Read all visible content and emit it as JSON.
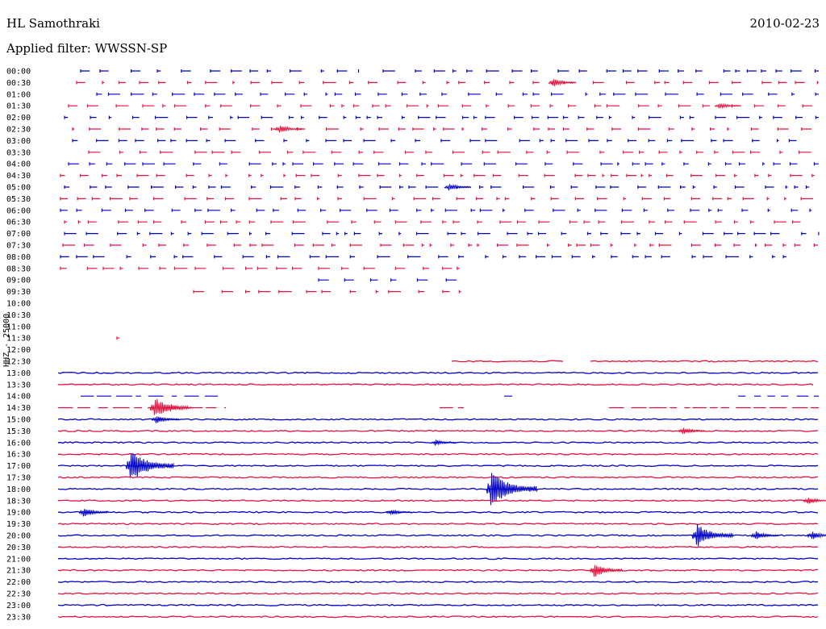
{
  "header": {
    "station": "HL Samothraki",
    "date": "2010-02-23",
    "filter_label": "Applied filter: WWSSN-SP"
  },
  "channel_label": "HHZ - 25000",
  "colors": {
    "even": "#0000cc",
    "odd": "#e8103c"
  },
  "chart_data": {
    "type": "line",
    "rows": [
      {
        "time": "00:00",
        "density": "sparse",
        "active": [
          [
            100,
            445
          ],
          [
            475,
            1015
          ]
        ],
        "events": []
      },
      {
        "time": "00:30",
        "density": "sparse",
        "active": [
          [
            95,
            1015
          ]
        ],
        "events": [
          [
            684,
            6
          ]
        ]
      },
      {
        "time": "01:00",
        "density": "sparse",
        "active": [
          [
            120,
            1015
          ]
        ],
        "events": []
      },
      {
        "time": "01:30",
        "density": "sparse",
        "active": [
          [
            85,
            1015
          ]
        ],
        "events": [
          [
            890,
            4
          ]
        ]
      },
      {
        "time": "02:00",
        "density": "sparse",
        "active": [
          [
            80,
            1015
          ]
        ],
        "events": []
      },
      {
        "time": "02:30",
        "density": "sparse",
        "active": [
          [
            90,
            1015
          ]
        ],
        "events": [
          [
            345,
            6
          ]
        ]
      },
      {
        "time": "03:00",
        "density": "sparse",
        "active": [
          [
            90,
            1015
          ]
        ],
        "events": []
      },
      {
        "time": "03:30",
        "density": "sparse",
        "active": [
          [
            110,
            1015
          ]
        ],
        "events": []
      },
      {
        "time": "04:00",
        "density": "sparse",
        "active": [
          [
            85,
            1015
          ]
        ],
        "events": []
      },
      {
        "time": "04:30",
        "density": "sparse",
        "active": [
          [
            75,
            1015
          ]
        ],
        "events": []
      },
      {
        "time": "05:00",
        "density": "sparse",
        "active": [
          [
            80,
            1015
          ]
        ],
        "events": [
          [
            555,
            5
          ]
        ]
      },
      {
        "time": "05:30",
        "density": "sparse",
        "active": [
          [
            75,
            1015
          ]
        ],
        "events": []
      },
      {
        "time": "06:00",
        "density": "sparse",
        "active": [
          [
            75,
            1015
          ]
        ],
        "events": []
      },
      {
        "time": "06:30",
        "density": "sparse",
        "active": [
          [
            80,
            1015
          ]
        ],
        "events": []
      },
      {
        "time": "07:00",
        "density": "sparse",
        "active": [
          [
            80,
            1015
          ]
        ],
        "events": []
      },
      {
        "time": "07:30",
        "density": "sparse",
        "active": [
          [
            78,
            1015
          ]
        ],
        "events": []
      },
      {
        "time": "08:00",
        "density": "sparse",
        "active": [
          [
            75,
            975
          ]
        ],
        "events": []
      },
      {
        "time": "08:30",
        "density": "sparse",
        "active": [
          [
            75,
            570
          ]
        ],
        "events": []
      },
      {
        "time": "09:00",
        "density": "sparse",
        "active": [
          [
            395,
            570
          ]
        ],
        "events": []
      },
      {
        "time": "09:30",
        "density": "sparse",
        "active": [
          [
            240,
            575
          ]
        ],
        "events": []
      },
      {
        "time": "10:00",
        "density": "none",
        "active": [],
        "events": []
      },
      {
        "time": "10:30",
        "density": "none",
        "active": [],
        "events": []
      },
      {
        "time": "11:00",
        "density": "none",
        "active": [],
        "events": []
      },
      {
        "time": "11:30",
        "density": "sparse",
        "active": [
          [
            145,
            150
          ]
        ],
        "events": []
      },
      {
        "time": "12:00",
        "density": "none",
        "active": [],
        "events": []
      },
      {
        "time": "12:30",
        "density": "solid",
        "active": [
          [
            560,
            698
          ],
          [
            732,
            1015
          ]
        ],
        "events": []
      },
      {
        "time": "13:00",
        "density": "solid",
        "active": [
          [
            72,
            1015
          ]
        ],
        "events": []
      },
      {
        "time": "13:30",
        "density": "solid",
        "active": [
          [
            72,
            1008
          ]
        ],
        "events": []
      },
      {
        "time": "14:00",
        "density": "mixed",
        "active": [
          [
            100,
            270
          ],
          [
            625,
            635
          ],
          [
            915,
            1015
          ]
        ],
        "events": []
      },
      {
        "time": "14:30",
        "density": "mixed",
        "active": [
          [
            72,
            280
          ],
          [
            545,
            575
          ],
          [
            755,
            1015
          ]
        ],
        "events": [
          [
            190,
            14
          ],
          [
            210,
            5
          ]
        ]
      },
      {
        "time": "15:00",
        "density": "solid",
        "active": [
          [
            72,
            1015
          ]
        ],
        "events": [
          [
            192,
            6
          ]
        ]
      },
      {
        "time": "15:30",
        "density": "solid",
        "active": [
          [
            72,
            1015
          ]
        ],
        "events": [
          [
            845,
            5
          ]
        ]
      },
      {
        "time": "16:00",
        "density": "solid",
        "active": [
          [
            72,
            1015
          ]
        ],
        "events": [
          [
            538,
            4
          ]
        ]
      },
      {
        "time": "16:30",
        "density": "solid",
        "active": [
          [
            72,
            1015
          ]
        ],
        "events": []
      },
      {
        "time": "17:00",
        "density": "solid",
        "active": [
          [
            72,
            1015
          ]
        ],
        "events": [
          [
            160,
            22
          ]
        ]
      },
      {
        "time": "17:30",
        "density": "solid",
        "active": [
          [
            72,
            1015
          ]
        ],
        "events": []
      },
      {
        "time": "18:00",
        "density": "solid",
        "active": [
          [
            72,
            1015
          ]
        ],
        "events": [
          [
            607,
            24
          ]
        ]
      },
      {
        "time": "18:30",
        "density": "solid",
        "active": [
          [
            72,
            1015
          ]
        ],
        "events": [
          [
            1000,
            5
          ]
        ]
      },
      {
        "time": "19:00",
        "density": "solid",
        "active": [
          [
            72,
            1015
          ]
        ],
        "events": [
          [
            102,
            7
          ],
          [
            483,
            4
          ]
        ]
      },
      {
        "time": "19:30",
        "density": "solid",
        "active": [
          [
            72,
            1015
          ]
        ],
        "events": []
      },
      {
        "time": "20:00",
        "density": "solid",
        "active": [
          [
            72,
            1015
          ]
        ],
        "events": [
          [
            862,
            16
          ],
          [
            935,
            6
          ],
          [
            1005,
            6
          ]
        ]
      },
      {
        "time": "20:30",
        "density": "solid",
        "active": [
          [
            72,
            1015
          ]
        ],
        "events": []
      },
      {
        "time": "21:00",
        "density": "solid",
        "active": [
          [
            72,
            1015
          ]
        ],
        "events": []
      },
      {
        "time": "21:30",
        "density": "solid",
        "active": [
          [
            72,
            1015
          ]
        ],
        "events": [
          [
            735,
            10
          ]
        ]
      },
      {
        "time": "22:00",
        "density": "solid",
        "active": [
          [
            72,
            1015
          ]
        ],
        "events": []
      },
      {
        "time": "22:30",
        "density": "solid",
        "active": [
          [
            72,
            1015
          ]
        ],
        "events": []
      },
      {
        "time": "23:00",
        "density": "solid",
        "active": [
          [
            72,
            1015
          ]
        ],
        "events": []
      },
      {
        "time": "23:30",
        "density": "solid",
        "active": [
          [
            72,
            1015
          ]
        ],
        "events": []
      }
    ]
  }
}
